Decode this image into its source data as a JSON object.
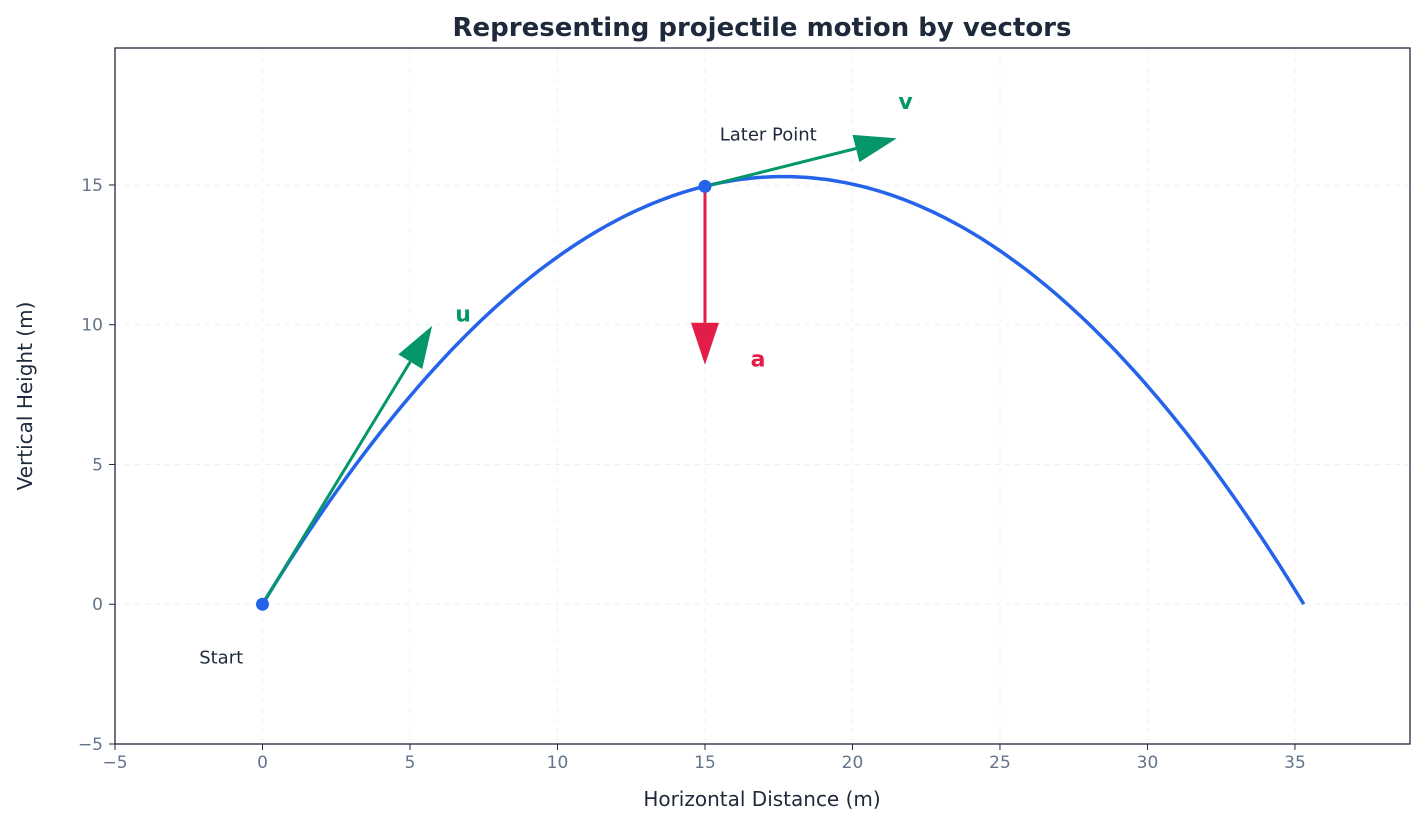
{
  "chart_data": {
    "type": "line",
    "title": "Representing projectile motion by vectors",
    "xlabel": "Horizontal Distance (m)",
    "ylabel": "Vertical Height (m)",
    "xlim": [
      -5,
      38.9
    ],
    "ylim": [
      -5,
      19.9
    ],
    "xticks": [
      -5,
      0,
      5,
      10,
      15,
      20,
      25,
      30,
      35
    ],
    "yticks": [
      -5,
      0,
      5,
      10,
      15
    ],
    "grid": true,
    "trajectory": {
      "range": 35.3,
      "max_height": 15.3,
      "color": "#2563eb"
    },
    "points": [
      {
        "x": 0,
        "y": 0,
        "label": "Start",
        "label_x": -1.4,
        "label_y": -1.9
      },
      {
        "x": 15,
        "y": 14.95,
        "label": "Later Point",
        "label_x": 15.5,
        "label_y": 16.8
      }
    ],
    "vectors": [
      {
        "name": "u",
        "from": [
          0,
          0
        ],
        "to": [
          5.75,
          9.96
        ],
        "color": "#059669",
        "label_x": 6.8,
        "label_y": 10.4
      },
      {
        "name": "v",
        "from": [
          15,
          14.95
        ],
        "to": [
          21.5,
          16.67
        ],
        "color": "#059669",
        "label_x": 21.8,
        "label_y": 18.0
      },
      {
        "name": "a",
        "from": [
          15,
          14.95
        ],
        "to": [
          15,
          8.57
        ],
        "color": "#e11d48",
        "label_x": 16.8,
        "label_y": 8.8
      }
    ]
  },
  "colors": {
    "text": "#1e293b",
    "tick": "#64748b",
    "grid": "#e2e8f0"
  }
}
